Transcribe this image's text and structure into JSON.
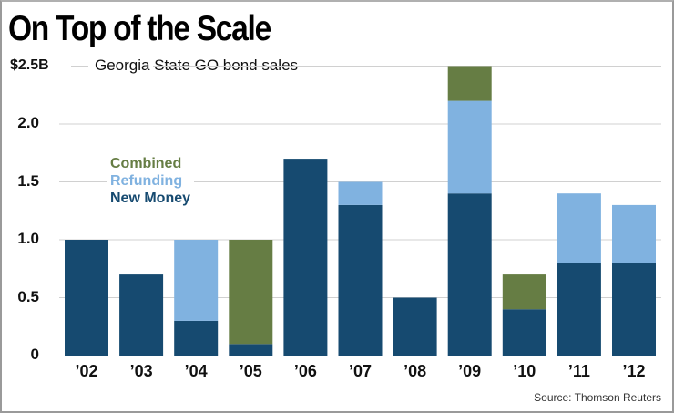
{
  "chart_data": {
    "type": "bar",
    "stacked": true,
    "title": "On Top of the Scale",
    "subtitle": "Georgia State GO bond sales",
    "unit_label": "$2.5B",
    "xlabel": "",
    "ylabel": "",
    "categories": [
      "'02",
      "'03",
      "'04",
      "'05",
      "'06",
      "'07",
      "'08",
      "'09",
      "'10",
      "'11",
      "'12"
    ],
    "category_labels": [
      "’02",
      "’03",
      "’04",
      "’05",
      "’06",
      "’07",
      "’08",
      "’09",
      "’10",
      "’11",
      "’12"
    ],
    "series": [
      {
        "name": "New Money",
        "color": "#164a70",
        "values": [
          1.0,
          0.7,
          0.3,
          0.1,
          1.7,
          1.3,
          0.5,
          1.4,
          0.4,
          0.8,
          0.8
        ]
      },
      {
        "name": "Refunding",
        "color": "#80b2e0",
        "values": [
          0,
          0,
          0.7,
          0,
          0,
          0.2,
          0,
          0.8,
          0,
          0.6,
          0.5
        ]
      },
      {
        "name": "Combined",
        "color": "#667d44",
        "values": [
          0,
          0,
          0,
          0.9,
          0,
          0,
          0,
          0.3,
          0.3,
          0,
          0
        ]
      }
    ],
    "legend_order": [
      "Combined",
      "Refunding",
      "New Money"
    ],
    "legend_placement": "upper-left",
    "yticks": [
      0,
      0.5,
      1.0,
      1.5,
      2.0,
      2.5
    ],
    "ytick_labels": [
      "0",
      "0.5",
      "1.0",
      "1.5",
      "2.0",
      "$2.5B"
    ],
    "ylim": [
      0,
      2.5
    ],
    "grid": true
  },
  "source": "Source: Thomson Reuters"
}
